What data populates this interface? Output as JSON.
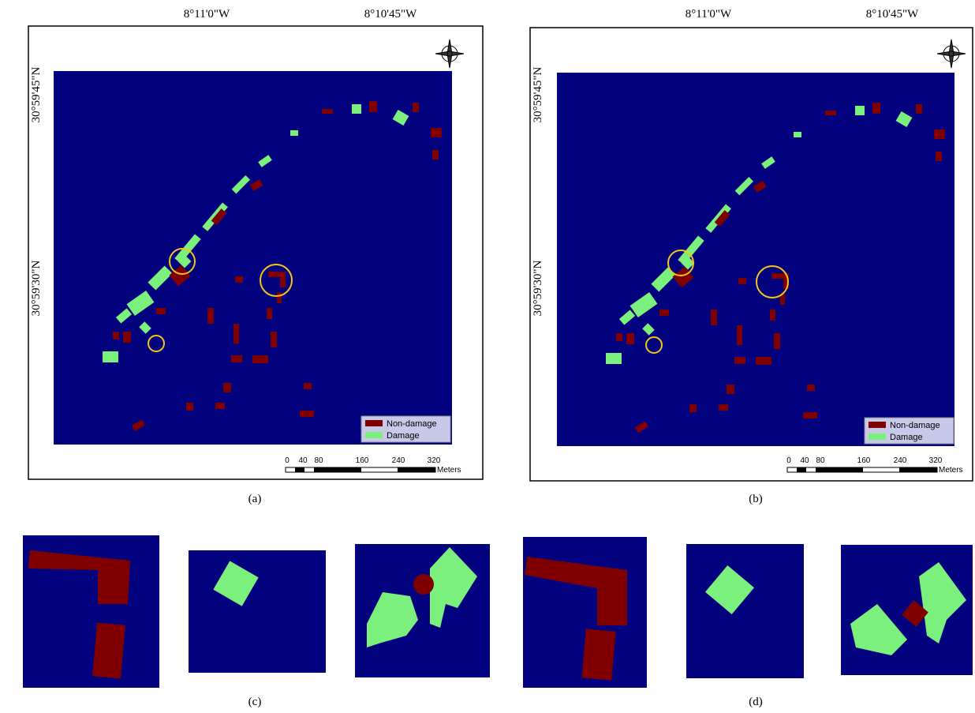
{
  "panels": [
    {
      "caption": "(a)",
      "lon_labels": [
        "8°11'0\"W",
        "8°10'45\"W"
      ],
      "lat_labels": [
        "30°59'45\"N",
        "30°59'30\"N"
      ],
      "legend": [
        "Non-damage",
        "Damage"
      ],
      "scale_labels": [
        "0",
        "40",
        "80",
        "160",
        "240",
        "320"
      ],
      "scale_unit": "Meters"
    },
    {
      "caption": "(b)",
      "lon_labels": [
        "8°11'0\"W",
        "8°10'45\"W"
      ],
      "lat_labels": [
        "30°59'45\"N",
        "30°59'30\"N"
      ],
      "legend": [
        "Non-damage",
        "Damage"
      ],
      "scale_labels": [
        "0",
        "40",
        "80",
        "160",
        "240",
        "320"
      ],
      "scale_unit": "Meters"
    }
  ],
  "captions": [
    "(c)",
    "(d)"
  ]
}
